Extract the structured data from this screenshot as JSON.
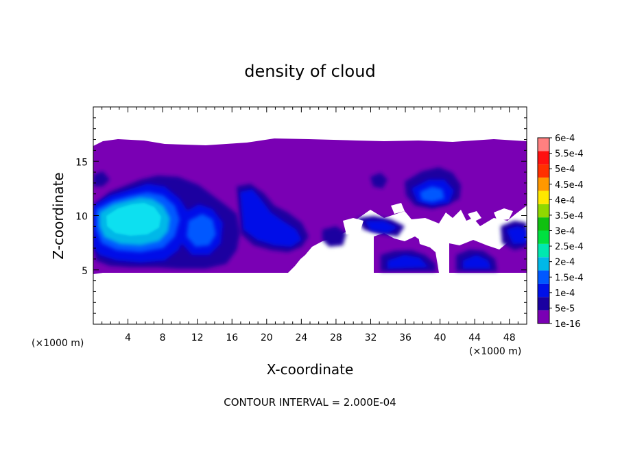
{
  "chart_data": {
    "type": "heatmap",
    "title": "density of cloud",
    "xlabel": "X-coordinate",
    "ylabel": "Z-coordinate",
    "x_unit_left": "(×1000 m)",
    "x_unit_right": "(×1000 m)",
    "xlim": [
      0,
      50
    ],
    "ylim": [
      0,
      20
    ],
    "x_ticks": [
      4,
      8,
      12,
      16,
      20,
      24,
      28,
      32,
      36,
      40,
      44,
      48
    ],
    "y_ticks": [
      5,
      10,
      15
    ],
    "legend": {
      "placement": "right",
      "labels": [
        "1e-16",
        "5e-5",
        "1e-4",
        "1.5e-4",
        "2e-4",
        "2.5e-4",
        "3e-4",
        "3.5e-4",
        "4e-4",
        "4.5e-4",
        "5e-4",
        "5.5e-4",
        "6e-4"
      ],
      "colors": [
        "#7a00b4",
        "#1a00a0",
        "#0010e8",
        "#0058ff",
        "#00b8e8",
        "#00e8b0",
        "#00e040",
        "#10c010",
        "#90d800",
        "#ffe800",
        "#ff9800",
        "#ff3000",
        "#ff1010",
        "#ff8080"
      ]
    },
    "contour_interval": "CONTOUR INTERVAL = 2.000E-04"
  }
}
